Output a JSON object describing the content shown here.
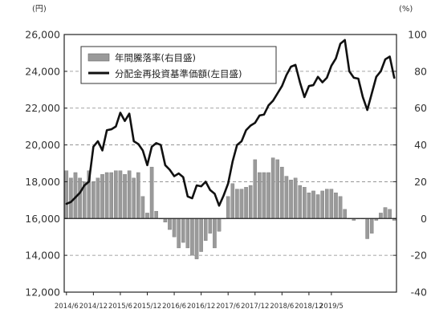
{
  "chart_data": {
    "type": "bar+line",
    "title": "",
    "units": {
      "left": "(円)",
      "right": "(%)"
    },
    "left_axis": {
      "min": 12000,
      "max": 26000,
      "ticks": [
        "12,000",
        "14,000",
        "16,000",
        "18,000",
        "20,000",
        "22,000",
        "24,000",
        "26,000"
      ],
      "tick_values": [
        12000,
        14000,
        16000,
        18000,
        20000,
        22000,
        24000,
        26000
      ]
    },
    "right_axis": {
      "min": -40,
      "max": 100,
      "ticks": [
        "-40",
        "-20",
        "0",
        "20",
        "40",
        "60",
        "80",
        "100"
      ],
      "tick_values": [
        -40,
        -20,
        0,
        20,
        40,
        60,
        80,
        100
      ]
    },
    "x_labels": [
      "2014/6",
      "2014/12",
      "2015/6",
      "2015/12",
      "2016/6",
      "2016/12",
      "2017/6",
      "2017/12",
      "2018/6",
      "2018/12",
      "2019/5"
    ],
    "x_label_index": [
      0,
      6,
      12,
      18,
      24,
      30,
      36,
      42,
      48,
      54,
      59
    ],
    "grid": {
      "horizontal": true,
      "style": "dashed",
      "values_left": [
        14000,
        18000,
        20000,
        22000,
        24000
      ]
    },
    "legend": {
      "position": "top-left",
      "items": [
        {
          "label": "年間騰落率(右目盛)",
          "kind": "bar"
        },
        {
          "label": "分配金再投資基準価額(左目盛)",
          "kind": "line"
        }
      ]
    },
    "colors": {
      "bar": "#9a9a9a",
      "bar_edge": "#666666",
      "line": "#111111",
      "grid": "#888888",
      "axis": "#222222"
    },
    "series": [
      {
        "name": "年間騰落率(右目盛)",
        "type": "bar",
        "axis": "right",
        "values": [
          26,
          22,
          25,
          22,
          20,
          26,
          20,
          22,
          24,
          25,
          25,
          26,
          26,
          24,
          26,
          22,
          25,
          12,
          3,
          28,
          4,
          0,
          -2,
          -6,
          -10,
          -16,
          -13,
          -16,
          -20,
          -22,
          -18,
          -12,
          -8,
          -16,
          -7,
          0,
          12,
          19,
          16,
          16,
          17,
          18,
          32,
          25,
          25,
          25,
          33,
          32,
          28,
          23,
          21,
          22,
          18,
          17,
          14,
          15,
          13,
          15,
          16,
          16,
          14,
          12,
          5,
          0,
          -1,
          0,
          0,
          -11,
          -8,
          -1,
          3,
          6,
          5,
          -1
        ]
      },
      {
        "name": "分配金再投資基準価額(左目盛)",
        "type": "line",
        "axis": "left",
        "values": [
          16800,
          16900,
          17150,
          17400,
          17800,
          18000,
          19900,
          20200,
          19700,
          20800,
          20850,
          21000,
          21750,
          21300,
          21700,
          20200,
          20050,
          19700,
          18900,
          19900,
          20100,
          20000,
          18900,
          18650,
          18300,
          18450,
          18250,
          17200,
          17100,
          17800,
          17750,
          18000,
          17550,
          17350,
          16700,
          17250,
          17900,
          19100,
          20000,
          20200,
          20800,
          21050,
          21200,
          21600,
          21650,
          22150,
          22400,
          22800,
          23200,
          23800,
          24250,
          24350,
          23400,
          22600,
          23200,
          23250,
          23700,
          23400,
          23650,
          24300,
          24700,
          25500,
          25700,
          24000,
          23650,
          23600,
          22600,
          21900,
          22800,
          23700,
          24000,
          24650,
          24800,
          23650
        ]
      }
    ]
  }
}
